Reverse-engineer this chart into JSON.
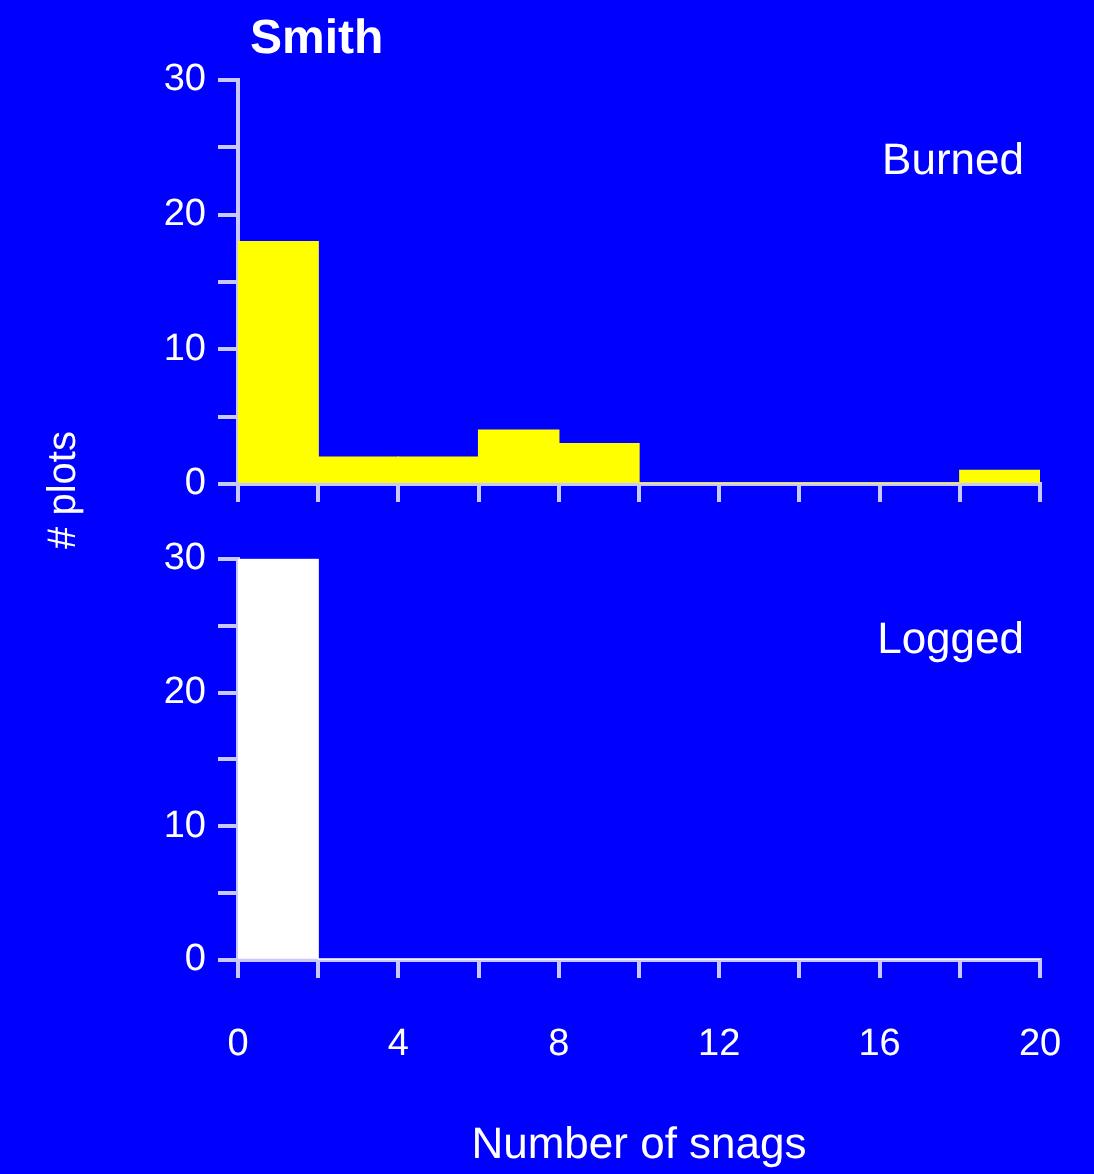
{
  "chart_data": [
    {
      "type": "histogram",
      "title": "Smith",
      "ylabel": "# plots",
      "annotations": [
        "Burned"
      ],
      "bins": [
        0,
        2,
        4,
        6,
        8,
        10,
        12,
        14,
        16,
        18,
        20
      ],
      "values": [
        18,
        2,
        2,
        4,
        3,
        0,
        0,
        0,
        0,
        1
      ],
      "color": "#ffff00",
      "xlim": [
        0,
        20
      ],
      "xticks": [
        0,
        {
          "value": 2,
          "label": null
        },
        {
          "value": 4,
          "label": null
        },
        {
          "value": 6,
          "label": null
        },
        {
          "value": 8,
          "label": null
        },
        {
          "value": 10,
          "label": null
        },
        {
          "value": 12,
          "label": null
        },
        {
          "value": 14,
          "label": null
        },
        {
          "value": 16,
          "label": null
        },
        {
          "value": 18,
          "label": null
        },
        {
          "value": 20,
          "label": null
        }
      ],
      "ylim": [
        0,
        30
      ],
      "yticks": [
        0,
        {
          "value": 5,
          "label": null
        },
        10,
        {
          "value": 15,
          "label": null
        },
        20,
        {
          "value": 25,
          "label": null
        },
        30
      ],
      "tick_labels": "y",
      "grid": false
    },
    {
      "type": "histogram",
      "xlabel": "Number of snags",
      "annotations": [
        "Logged"
      ],
      "bins": [
        0,
        2,
        4,
        6,
        8,
        10,
        12,
        14,
        16,
        18,
        20
      ],
      "values": [
        30,
        0,
        0,
        0,
        0,
        0,
        0,
        0,
        0,
        0
      ],
      "color": "#ffffff",
      "xlim": [
        0,
        20
      ],
      "xticks": [
        0,
        {
          "value": 2,
          "label": null
        },
        4,
        {
          "value": 6,
          "label": null
        },
        8,
        {
          "value": 10,
          "label": null
        },
        12,
        {
          "value": 14,
          "label": null
        },
        16,
        {
          "value": 18,
          "label": null
        },
        20
      ],
      "ylim": [
        0,
        30
      ],
      "yticks": [
        0,
        {
          "value": 5,
          "label": null
        },
        10,
        {
          "value": 15,
          "label": null
        },
        20,
        {
          "value": 25,
          "label": null
        },
        30
      ],
      "grid": false
    }
  ]
}
